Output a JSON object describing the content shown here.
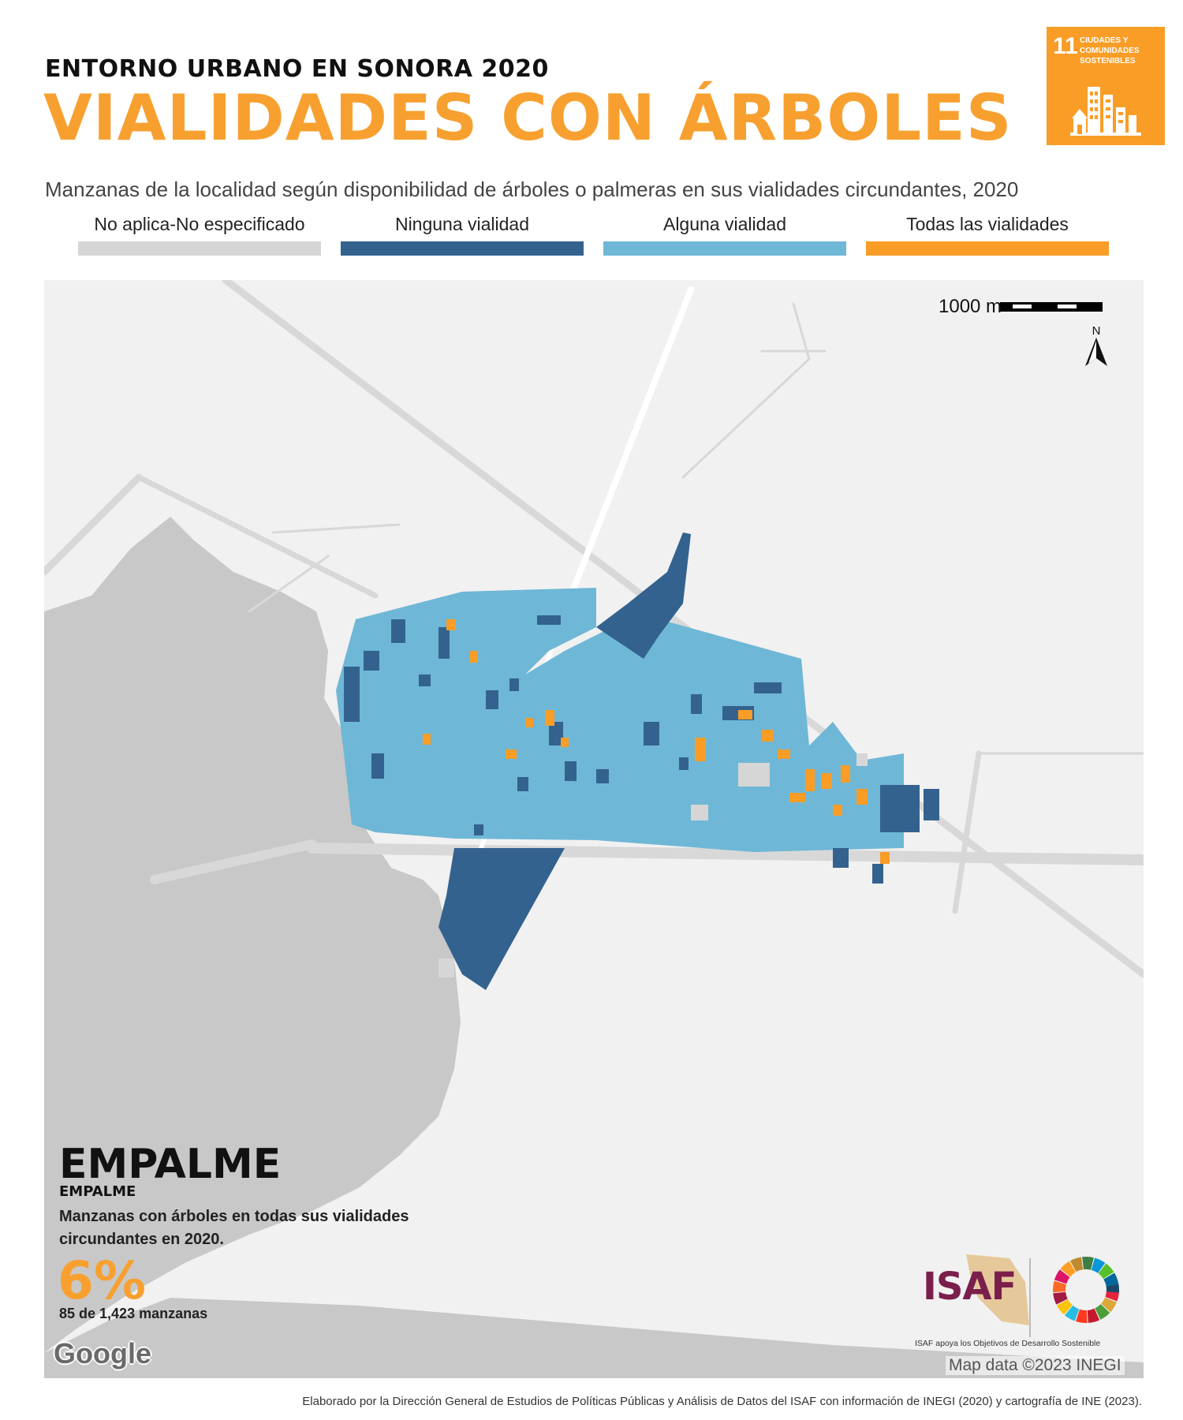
{
  "header": {
    "supertitle": "ENTORNO URBANO EN SONORA 2020",
    "title": "VIALIDADES CON ÁRBOLES",
    "subtitle": "Manzanas de la localidad según disponibilidad de árboles o palmeras en sus vialidades circundantes, 2020"
  },
  "sdg_badge": {
    "number": "11",
    "text": "CIUDADES Y COMUNIDADES SOSTENIBLES",
    "color": "#f99d26",
    "icon": "city-buildings-icon"
  },
  "legend": [
    {
      "label": "No aplica-No especificado",
      "color": "#d6d6d6"
    },
    {
      "label": "Ninguna vialidad",
      "color": "#33628f"
    },
    {
      "label": "Alguna vialidad",
      "color": "#6fb7d6"
    },
    {
      "label": "Todas las vialidades",
      "color": "#f99d26"
    }
  ],
  "map": {
    "scale_label": "1000 m",
    "north_label": "N",
    "water_color": "#c8c8c8",
    "land_color": "#f1f1f1",
    "road_color": "#dcdcdc"
  },
  "locality": {
    "name": "EMPALME",
    "subname": "EMPALME",
    "description": "Manzanas con árboles en todas sus vialidades circundantes en 2020.",
    "percent": "6%",
    "count": "85 de 1,423 manzanas"
  },
  "logos": {
    "isaf": "ISAF",
    "isaf_caption": "ISAF apoya los Objetivos de Desarrollo Sostenible",
    "google": "Google"
  },
  "map_credit": "Map data ©2023 INEGI",
  "footer": "Elaborado por la Dirección General de Estudios de Políticas Públicas y Análisis de Datos del ISAF con información de INEGI (2020) y cartografía de INE (2023)."
}
